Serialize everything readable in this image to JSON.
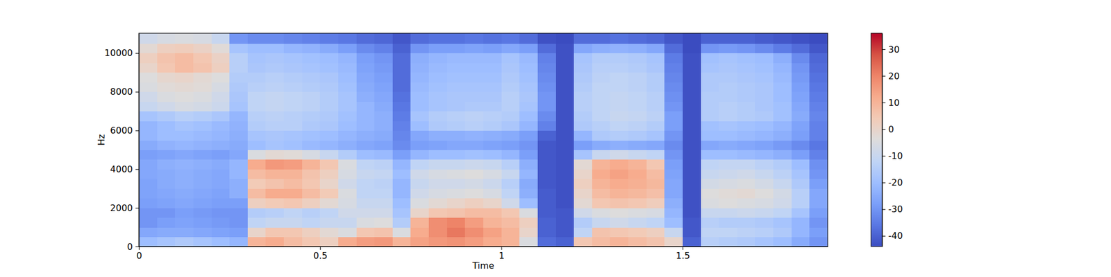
{
  "chart_data": {
    "type": "heatmap",
    "x_label": "Time",
    "y_label": "Hz",
    "xlim": [
      0,
      1.9
    ],
    "ylim": [
      0,
      11025
    ],
    "xticks": [
      0,
      0.5,
      1,
      1.5
    ],
    "yticks": [
      0,
      2000,
      4000,
      6000,
      8000,
      10000
    ],
    "x_edges": [
      0,
      0.05,
      0.1,
      0.15,
      0.2,
      0.25,
      0.3,
      0.35,
      0.4,
      0.45,
      0.5,
      0.55,
      0.6,
      0.65,
      0.7,
      0.75,
      0.8,
      0.85,
      0.9,
      0.95,
      1,
      1.05,
      1.1,
      1.15,
      1.2,
      1.25,
      1.3,
      1.35,
      1.4,
      1.45,
      1.5,
      1.55,
      1.6,
      1.65,
      1.7,
      1.75,
      1.8,
      1.85,
      1.9
    ],
    "y_edges": [
      0,
      500,
      1000,
      1500,
      2000,
      2500,
      3000,
      3500,
      4000,
      4500,
      5000,
      5500,
      6000,
      6500,
      7000,
      7500,
      8000,
      8500,
      9000,
      9500,
      10000,
      10500,
      11025
    ],
    "color_range": [
      -44,
      36
    ],
    "color_ticks": [
      -40,
      -30,
      -20,
      -10,
      0,
      10,
      20,
      30
    ],
    "cells": [
      [
        -20,
        -26,
        -30,
        -30,
        -28,
        -27,
        -27,
        -26,
        -26,
        -28,
        -25,
        -22,
        -22,
        -18,
        -10,
        -8,
        -5,
        -4,
        0,
        2,
        -2,
        -8
      ],
      [
        -18,
        -25,
        -28,
        -30,
        -27,
        -26,
        -25,
        -25,
        -24,
        -27,
        -23,
        -20,
        -20,
        -16,
        -8,
        -5,
        -3,
        -1,
        5,
        6,
        2,
        -6
      ],
      [
        -16,
        -25,
        -27,
        -28,
        -26,
        -25,
        -24,
        -24,
        -23,
        -26,
        -22,
        -20,
        -18,
        -14,
        -6,
        -4,
        -2,
        0,
        8,
        8,
        3,
        -5
      ],
      [
        -18,
        -26,
        -28,
        -29,
        -27,
        -26,
        -25,
        -25,
        -24,
        -27,
        -23,
        -21,
        -19,
        -15,
        -7,
        -5,
        -3,
        -2,
        6,
        5,
        1,
        -6
      ],
      [
        -20,
        -27,
        -29,
        -30,
        -28,
        -27,
        -26,
        -26,
        -25,
        -28,
        -24,
        -22,
        -21,
        -17,
        -9,
        -8,
        -6,
        -4,
        2,
        1,
        -3,
        -10
      ],
      [
        -22,
        -28,
        -30,
        -30,
        -28,
        -24,
        -24,
        -22,
        -22,
        -26,
        -25,
        -24,
        -23,
        -22,
        -18,
        -17,
        -16,
        -15,
        -14,
        -14,
        -18,
        -30
      ],
      [
        10,
        0,
        -12,
        -15,
        2,
        8,
        4,
        8,
        12,
        -5,
        -20,
        -18,
        -15,
        -14,
        -12,
        -12,
        -14,
        -15,
        -17,
        -18,
        -20,
        -32
      ],
      [
        12,
        5,
        -10,
        -14,
        4,
        12,
        6,
        10,
        16,
        -2,
        -18,
        -17,
        -14,
        -13,
        -11,
        -11,
        -13,
        -14,
        -16,
        -17,
        -20,
        -32
      ],
      [
        8,
        5,
        -10,
        -12,
        5,
        12,
        8,
        10,
        15,
        -3,
        -19,
        -18,
        -14,
        -14,
        -12,
        -12,
        -14,
        -15,
        -17,
        -18,
        -22,
        -33
      ],
      [
        5,
        2,
        -12,
        -14,
        2,
        8,
        5,
        6,
        10,
        -6,
        -21,
        -19,
        -16,
        -15,
        -13,
        -13,
        -15,
        -16,
        -18,
        -19,
        -23,
        -34
      ],
      [
        2,
        -2,
        -10,
        -12,
        -2,
        4,
        0,
        2,
        5,
        -10,
        -22,
        -20,
        -17,
        -16,
        -15,
        -15,
        -16,
        -17,
        -19,
        -20,
        -25,
        -35
      ],
      [
        12,
        -5,
        -10,
        -8,
        -6,
        -5,
        -8,
        -6,
        -5,
        -15,
        -24,
        -22,
        -20,
        -19,
        -18,
        -18,
        -19,
        -20,
        -21,
        -22,
        -28,
        -36
      ],
      [
        15,
        5,
        -5,
        -8,
        -10,
        -12,
        -12,
        -10,
        -12,
        -20,
        -26,
        -24,
        -22,
        -22,
        -22,
        -24,
        -25,
        -26,
        -27,
        -28,
        -32,
        -38
      ],
      [
        16,
        6,
        -4,
        -8,
        -10,
        -12,
        -13,
        -11,
        -13,
        -21,
        -27,
        -25,
        -24,
        -24,
        -25,
        -26,
        -27,
        -28,
        -29,
        -30,
        -34,
        -39
      ],
      [
        10,
        -5,
        -15,
        -18,
        -20,
        -22,
        -22,
        -20,
        -22,
        -28,
        -32,
        -33,
        -34,
        -35,
        -36,
        -37,
        -38,
        -38,
        -38,
        -38,
        -40,
        -42
      ],
      [
        14,
        12,
        10,
        0,
        -5,
        -8,
        -10,
        -8,
        -12,
        -22,
        -28,
        -26,
        -20,
        -18,
        -20,
        -20,
        -21,
        -22,
        -23,
        -24,
        -30,
        -38
      ],
      [
        16,
        18,
        18,
        5,
        -2,
        -6,
        -8,
        -6,
        -10,
        -20,
        -27,
        -24,
        -16,
        -15,
        -18,
        -18,
        -19,
        -20,
        -21,
        -22,
        -28,
        -37
      ],
      [
        17,
        22,
        20,
        6,
        0,
        -5,
        -8,
        -5,
        -10,
        -20,
        -26,
        -24,
        -15,
        -14,
        -17,
        -17,
        -18,
        -19,
        -20,
        -21,
        -28,
        -37
      ],
      [
        15,
        18,
        15,
        8,
        2,
        -4,
        -7,
        -4,
        -9,
        -19,
        -26,
        -23,
        -14,
        -13,
        -16,
        -17,
        -18,
        -19,
        -20,
        -21,
        -27,
        -36
      ],
      [
        12,
        14,
        10,
        8,
        0,
        -6,
        -9,
        -6,
        -10,
        -20,
        -27,
        -24,
        -15,
        -14,
        -16,
        -17,
        -18,
        -19,
        -20,
        -21,
        -28,
        -37
      ],
      [
        10,
        10,
        8,
        5,
        -8,
        -12,
        -14,
        -10,
        -14,
        -22,
        -28,
        -25,
        -17,
        -15,
        -14,
        -14,
        -15,
        -16,
        -17,
        -18,
        -26,
        -36
      ],
      [
        -5,
        0,
        2,
        -5,
        -20,
        -24,
        -25,
        -22,
        -24,
        -28,
        -30,
        -28,
        -22,
        -20,
        -18,
        -17,
        -18,
        -19,
        -20,
        -21,
        -28,
        -38
      ],
      [
        -38,
        -40,
        -40,
        -41,
        -41,
        -41,
        -42,
        -42,
        -42,
        -42,
        -42,
        -40,
        -34,
        -32,
        -30,
        -30,
        -31,
        -32,
        -33,
        -34,
        -38,
        -43
      ],
      [
        -40,
        -42,
        -42,
        -42,
        -43,
        -43,
        -43,
        -43,
        -43,
        -43,
        -43,
        -43,
        -43,
        -43,
        -43,
        -43,
        -43,
        -43,
        -43,
        -43,
        -43,
        -44
      ],
      [
        5,
        -12,
        -15,
        -8,
        -2,
        0,
        2,
        0,
        -2,
        -18,
        -28,
        -22,
        -16,
        -15,
        -14,
        -14,
        -15,
        -16,
        -17,
        -18,
        -26,
        -38
      ],
      [
        8,
        6,
        -10,
        -5,
        5,
        8,
        10,
        12,
        10,
        -10,
        -25,
        -16,
        -14,
        -12,
        -12,
        -12,
        -12,
        -13,
        -14,
        -15,
        -24,
        -38
      ],
      [
        10,
        5,
        -8,
        -4,
        6,
        10,
        12,
        14,
        12,
        -8,
        -24,
        -15,
        -12,
        -10,
        -11,
        -11,
        -12,
        -12,
        -14,
        -15,
        -23,
        -37
      ],
      [
        8,
        4,
        -10,
        -5,
        5,
        9,
        11,
        12,
        10,
        -10,
        -25,
        -16,
        -13,
        -11,
        -12,
        -12,
        -13,
        -13,
        -15,
        -16,
        -24,
        -38
      ],
      [
        6,
        2,
        -12,
        -6,
        3,
        7,
        9,
        8,
        5,
        -12,
        -26,
        -18,
        -15,
        -13,
        -14,
        -14,
        -15,
        -15,
        -17,
        -18,
        -26,
        -39
      ],
      [
        0,
        -10,
        -20,
        -22,
        -24,
        -26,
        -26,
        -27,
        -28,
        -30,
        -32,
        -30,
        -28,
        -28,
        -30,
        -31,
        -32,
        -33,
        -34,
        -35,
        -38,
        -42
      ],
      [
        -40,
        -42,
        -42,
        -43,
        -43,
        -43,
        -43,
        -43,
        -43,
        -43,
        -43,
        -43,
        -43,
        -43,
        -43,
        -43,
        -43,
        -43,
        -43,
        -43,
        -44,
        -44
      ],
      [
        -14,
        -12,
        -14,
        -10,
        -5,
        -4,
        -7,
        -10,
        -12,
        -20,
        -26,
        -20,
        -19,
        -15,
        -15,
        -15,
        -16,
        -16,
        -18,
        -19,
        -30,
        -40
      ],
      [
        -15,
        -12,
        -15,
        -10,
        -4,
        -3,
        -6,
        -9,
        -11,
        -20,
        -25,
        -20,
        -18,
        -14,
        -14,
        -15,
        -15,
        -16,
        -17,
        -18,
        -29,
        -40
      ],
      [
        -16,
        -13,
        -15,
        -9,
        -5,
        -2,
        -5,
        -8,
        -11,
        -21,
        -26,
        -21,
        -19,
        -15,
        -15,
        -16,
        -16,
        -17,
        -18,
        -19,
        -30,
        -40
      ],
      [
        -18,
        -14,
        -16,
        -10,
        -6,
        -4,
        -7,
        -10,
        -13,
        -22,
        -27,
        -22,
        -20,
        -16,
        -17,
        -17,
        -17,
        -18,
        -19,
        -20,
        -32,
        -41
      ],
      [
        -20,
        -16,
        -18,
        -12,
        -8,
        -7,
        -10,
        -13,
        -15,
        -24,
        -29,
        -24,
        -22,
        -19,
        -19,
        -20,
        -20,
        -21,
        -22,
        -24,
        -35,
        -42
      ],
      [
        -25,
        -22,
        -22,
        -18,
        -14,
        -14,
        -16,
        -18,
        -20,
        -28,
        -32,
        -28,
        -27,
        -25,
        -26,
        -27,
        -28,
        -29,
        -30,
        -32,
        -38,
        -43
      ],
      [
        -30,
        -28,
        -30,
        -28,
        -26,
        -26,
        -28,
        -30,
        -31,
        -34,
        -36,
        -34,
        -34,
        -33,
        -34,
        -35,
        -36,
        -37,
        -38,
        -39,
        -42,
        -44
      ]
    ]
  }
}
